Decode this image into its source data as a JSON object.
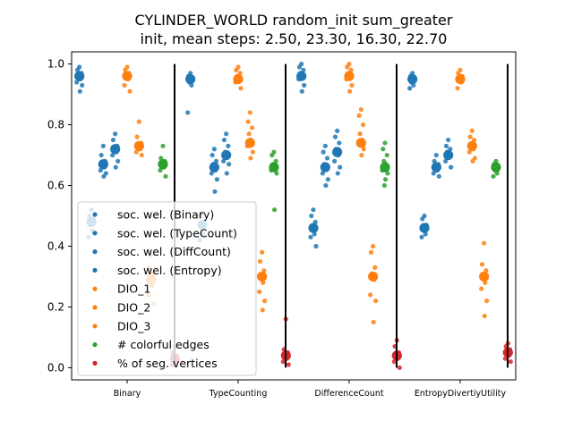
{
  "chart_data": {
    "type": "scatter",
    "title": "CYLINDER_WORLD random_init sum_greater",
    "subtitle": "init, mean steps: 2.50, 23.30, 16.30, 22.70",
    "xlabel": "",
    "ylabel": "",
    "ylim": [
      -0.04,
      1.04
    ],
    "yticks": [
      "0.0",
      "0.2",
      "0.4",
      "0.6",
      "0.8",
      "1.0"
    ],
    "categories": [
      "Binary",
      "TypeCounting",
      "DifferenceCount",
      "EntropyDivertiyUtility"
    ],
    "grid": false,
    "legend_position": "lower left",
    "colors": {
      "blue": "#1f77b4",
      "orange": "#ff7f0e",
      "green": "#2ca02c",
      "red": "#d62728"
    },
    "series": [
      {
        "name": "soc. wel. (Binary)",
        "color": "#1f77b4",
        "means": [
          0.96,
          0.95,
          0.96,
          0.95
        ],
        "points": [
          [
            0.99,
            0.98,
            0.97,
            0.96,
            0.95,
            0.94,
            0.93,
            0.91
          ],
          [
            0.97,
            0.96,
            0.95,
            0.94,
            0.93,
            0.84
          ],
          [
            1.0,
            0.99,
            0.98,
            0.97,
            0.96,
            0.95,
            0.93,
            0.91
          ],
          [
            0.97,
            0.96,
            0.95,
            0.94,
            0.93,
            0.92
          ]
        ]
      },
      {
        "name": "soc. wel. (TypeCount)",
        "color": "#1f77b4",
        "means": [
          0.48,
          0.47,
          0.46,
          0.46
        ],
        "points": [
          [
            0.52,
            0.5,
            0.49,
            0.47,
            0.45,
            0.43
          ],
          [
            0.51,
            0.5,
            0.48,
            0.46,
            0.44,
            0.42
          ],
          [
            0.52,
            0.5,
            0.48,
            0.46,
            0.44,
            0.43,
            0.4
          ],
          [
            0.5,
            0.49,
            0.47,
            0.46,
            0.44,
            0.43
          ]
        ]
      },
      {
        "name": "soc. wel. (DiffCount)",
        "color": "#1f77b4",
        "means": [
          0.67,
          0.66,
          0.66,
          0.66
        ],
        "points": [
          [
            0.73,
            0.7,
            0.68,
            0.67,
            0.66,
            0.65,
            0.64,
            0.63
          ],
          [
            0.72,
            0.7,
            0.68,
            0.67,
            0.65,
            0.64,
            0.62,
            0.58
          ],
          [
            0.73,
            0.71,
            0.69,
            0.67,
            0.66,
            0.64,
            0.62,
            0.6
          ],
          [
            0.7,
            0.68,
            0.67,
            0.66,
            0.65,
            0.64,
            0.63
          ]
        ]
      },
      {
        "name": "soc. wel. (Entropy)",
        "color": "#1f77b4",
        "means": [
          0.72,
          0.7,
          0.71,
          0.7
        ],
        "points": [
          [
            0.77,
            0.75,
            0.73,
            0.72,
            0.71,
            0.7,
            0.68,
            0.66
          ],
          [
            0.77,
            0.75,
            0.73,
            0.71,
            0.7,
            0.68,
            0.67,
            0.64
          ],
          [
            0.78,
            0.76,
            0.74,
            0.72,
            0.7,
            0.68,
            0.66,
            0.64
          ],
          [
            0.75,
            0.73,
            0.72,
            0.71,
            0.7,
            0.68,
            0.66
          ]
        ]
      },
      {
        "name": "DIO_1",
        "color": "#ff7f0e",
        "means": [
          0.96,
          0.95,
          0.96,
          0.95
        ],
        "points": [
          [
            0.99,
            0.98,
            0.97,
            0.96,
            0.95,
            0.93,
            0.91
          ],
          [
            0.99,
            0.98,
            0.97,
            0.96,
            0.95,
            0.94,
            0.92
          ],
          [
            1.0,
            0.99,
            0.98,
            0.97,
            0.96,
            0.95,
            0.93,
            0.91
          ],
          [
            0.98,
            0.97,
            0.96,
            0.95,
            0.94,
            0.92
          ]
        ]
      },
      {
        "name": "DIO_2",
        "color": "#ff7f0e",
        "means": [
          0.73,
          0.74,
          0.74,
          0.73
        ],
        "points": [
          [
            0.81,
            0.76,
            0.74,
            0.73,
            0.72,
            0.71,
            0.7
          ],
          [
            0.84,
            0.81,
            0.79,
            0.77,
            0.75,
            0.73,
            0.71,
            0.69
          ],
          [
            0.85,
            0.83,
            0.8,
            0.77,
            0.75,
            0.74,
            0.72,
            0.7
          ],
          [
            0.78,
            0.76,
            0.75,
            0.73,
            0.72,
            0.71,
            0.69,
            0.68
          ]
        ]
      },
      {
        "name": "DIO_3",
        "color": "#ff7f0e",
        "means": [
          0.29,
          0.3,
          0.3,
          0.3
        ],
        "points": [
          [
            0.37,
            0.33,
            0.31,
            0.29,
            0.27,
            0.24,
            0.21
          ],
          [
            0.38,
            0.35,
            0.32,
            0.3,
            0.28,
            0.25,
            0.22,
            0.19
          ],
          [
            0.4,
            0.38,
            0.33,
            0.31,
            0.29,
            0.24,
            0.22,
            0.15
          ],
          [
            0.41,
            0.34,
            0.32,
            0.3,
            0.28,
            0.26,
            0.22,
            0.17
          ]
        ]
      },
      {
        "name": "# colorful edges",
        "color": "#2ca02c",
        "means": [
          0.67,
          0.66,
          0.66,
          0.66
        ],
        "points": [
          [
            0.73,
            0.69,
            0.68,
            0.67,
            0.66,
            0.65,
            0.63
          ],
          [
            0.71,
            0.7,
            0.68,
            0.67,
            0.66,
            0.65,
            0.64,
            0.52
          ],
          [
            0.74,
            0.72,
            0.7,
            0.68,
            0.67,
            0.65,
            0.64,
            0.62,
            0.6
          ],
          [
            0.68,
            0.67,
            0.66,
            0.65,
            0.64,
            0.63
          ]
        ]
      },
      {
        "name": "% of seg. vertices",
        "color": "#d62728",
        "means": [
          0.03,
          0.04,
          0.04,
          0.05
        ],
        "points": [
          [
            0.07,
            0.05,
            0.04,
            0.03,
            0.02,
            0.01
          ],
          [
            0.16,
            0.06,
            0.05,
            0.04,
            0.03,
            0.02,
            0.01
          ],
          [
            0.09,
            0.07,
            0.05,
            0.04,
            0.03,
            0.02,
            0.0
          ],
          [
            0.08,
            0.07,
            0.06,
            0.05,
            0.04,
            0.03,
            0.02
          ]
        ]
      }
    ]
  }
}
